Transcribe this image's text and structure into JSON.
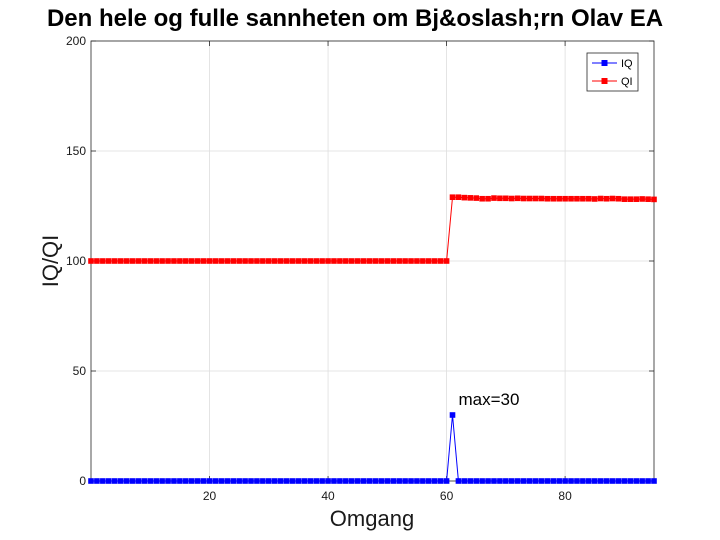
{
  "chart_data": {
    "type": "line",
    "title": "Den hele og fulle sannheten om Bj&oslash;rn Olav EA",
    "xlabel": "Omgang",
    "ylabel": "IQ/QI",
    "xlim": [
      0,
      95
    ],
    "ylim": [
      0,
      200
    ],
    "xticks": [
      20,
      40,
      60,
      80
    ],
    "yticks": [
      0,
      50,
      100,
      150,
      200
    ],
    "grid": true,
    "legend_position": "top-right",
    "series": [
      {
        "name": "IQ",
        "color": "#0000ff",
        "marker": "square",
        "x": [
          0,
          1,
          2,
          3,
          4,
          5,
          6,
          7,
          8,
          9,
          10,
          11,
          12,
          13,
          14,
          15,
          16,
          17,
          18,
          19,
          20,
          21,
          22,
          23,
          24,
          25,
          26,
          27,
          28,
          29,
          30,
          31,
          32,
          33,
          34,
          35,
          36,
          37,
          38,
          39,
          40,
          41,
          42,
          43,
          44,
          45,
          46,
          47,
          48,
          49,
          50,
          51,
          52,
          53,
          54,
          55,
          56,
          57,
          58,
          59,
          60,
          61,
          62,
          63,
          64,
          65,
          66,
          67,
          68,
          69,
          70,
          71,
          72,
          73,
          74,
          75,
          76,
          77,
          78,
          79,
          80,
          81,
          82,
          83,
          84,
          85,
          86,
          87,
          88,
          89,
          90,
          91,
          92,
          93,
          94,
          95
        ],
        "y": [
          0,
          0,
          0,
          0,
          0,
          0,
          0,
          0,
          0,
          0,
          0,
          0,
          0,
          0,
          0,
          0,
          0,
          0,
          0,
          0,
          0,
          0,
          0,
          0,
          0,
          0,
          0,
          0,
          0,
          0,
          0,
          0,
          0,
          0,
          0,
          0,
          0,
          0,
          0,
          0,
          0,
          0,
          0,
          0,
          0,
          0,
          0,
          0,
          0,
          0,
          0,
          0,
          0,
          0,
          0,
          0,
          0,
          0,
          0,
          0,
          0,
          30,
          0,
          0,
          0,
          0,
          0,
          0,
          0,
          0,
          0,
          0,
          0,
          0,
          0,
          0,
          0,
          0,
          0,
          0,
          0,
          0,
          0,
          0,
          0,
          0,
          0,
          0,
          0,
          0,
          0,
          0,
          0,
          0,
          0,
          0
        ]
      },
      {
        "name": "QI",
        "color": "#ff0000",
        "marker": "square",
        "x": [
          0,
          1,
          2,
          3,
          4,
          5,
          6,
          7,
          8,
          9,
          10,
          11,
          12,
          13,
          14,
          15,
          16,
          17,
          18,
          19,
          20,
          21,
          22,
          23,
          24,
          25,
          26,
          27,
          28,
          29,
          30,
          31,
          32,
          33,
          34,
          35,
          36,
          37,
          38,
          39,
          40,
          41,
          42,
          43,
          44,
          45,
          46,
          47,
          48,
          49,
          50,
          51,
          52,
          53,
          54,
          55,
          56,
          57,
          58,
          59,
          60,
          61,
          62,
          63,
          64,
          65,
          66,
          67,
          68,
          69,
          70,
          71,
          72,
          73,
          74,
          75,
          76,
          77,
          78,
          79,
          80,
          81,
          82,
          83,
          84,
          85,
          86,
          87,
          88,
          89,
          90,
          91,
          92,
          93,
          94,
          95
        ],
        "y": [
          100,
          100,
          100,
          100,
          100,
          100,
          100,
          100,
          100,
          100,
          100,
          100,
          100,
          100,
          100,
          100,
          100,
          100,
          100,
          100,
          100,
          100,
          100,
          100,
          100,
          100,
          100,
          100,
          100,
          100,
          100,
          100,
          100,
          100,
          100,
          100,
          100,
          100,
          100,
          100,
          100,
          100,
          100,
          100,
          100,
          100,
          100,
          100,
          100,
          100,
          100,
          100,
          100,
          100,
          100,
          100,
          100,
          100,
          100,
          100,
          100,
          129,
          129,
          128.8,
          128.7,
          128.6,
          128.3,
          128.3,
          128.6,
          128.5,
          128.5,
          128.4,
          128.5,
          128.4,
          128.4,
          128.4,
          128.4,
          128.3,
          128.3,
          128.3,
          128.3,
          128.3,
          128.3,
          128.3,
          128.3,
          128.2,
          128.4,
          128.3,
          128.4,
          128.3,
          128.1,
          128.1,
          128.1,
          128.2,
          128.1,
          128
        ]
      }
    ],
    "annotations": [
      {
        "text": "max=30",
        "x": 61,
        "y": 30
      }
    ]
  }
}
